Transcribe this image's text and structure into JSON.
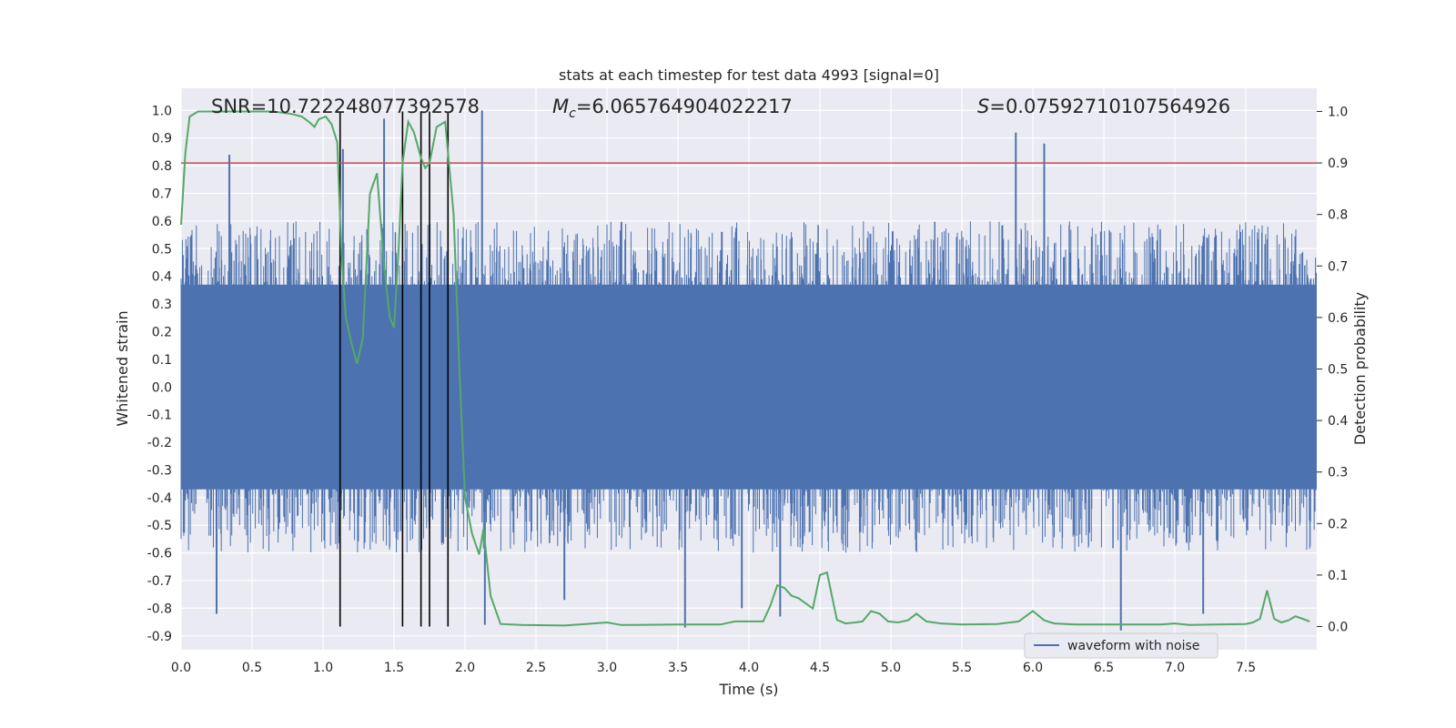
{
  "chart_data": {
    "type": "line",
    "title": "stats at each timestep for test data 4993 [signal=0]",
    "xlabel": "Time (s)",
    "ylabel_left": "Whitened strain",
    "ylabel_right": "Detection probability",
    "xlim": [
      0.0,
      8.0
    ],
    "ylim_left": [
      -0.95,
      1.08
    ],
    "ylim_right": [
      -0.045,
      1.045
    ],
    "x_ticks": [
      "0.0",
      "0.5",
      "1.0",
      "1.5",
      "2.0",
      "2.5",
      "3.0",
      "3.5",
      "4.0",
      "4.5",
      "5.0",
      "5.5",
      "6.0",
      "6.5",
      "7.0",
      "7.5"
    ],
    "y_ticks_left": [
      "1.0",
      "0.9",
      "0.8",
      "0.7",
      "0.6",
      "0.5",
      "0.4",
      "0.3",
      "0.2",
      "0.1",
      "0.0",
      "-0.1",
      "-0.2",
      "-0.3",
      "-0.4",
      "-0.5",
      "-0.6",
      "-0.7",
      "-0.8",
      "-0.9"
    ],
    "y_ticks_right": [
      "1.0",
      "0.9",
      "0.8",
      "0.7",
      "0.6",
      "0.5",
      "0.4",
      "0.3",
      "0.2",
      "0.1",
      "0.0"
    ],
    "annotations": {
      "snr": "SNR=10.722248077392578",
      "mc_symbol": "M",
      "mc_sub": "c",
      "mc_value": "=6.065764904022217",
      "s_symbol": "S",
      "s_value": "=0.07592710107564926"
    },
    "threshold": 0.9,
    "vertical_markers": [
      1.12,
      1.56,
      1.69,
      1.75,
      1.88
    ],
    "waveform": {
      "name": "waveform with noise",
      "color": "#4c72b0",
      "typical_envelope": [
        -0.48,
        0.48
      ],
      "peaks": [
        {
          "x": 0.34,
          "y": 0.84
        },
        {
          "x": 1.43,
          "y": 0.97
        },
        {
          "x": 1.14,
          "y": 0.86
        },
        {
          "x": 2.12,
          "y": 1.0
        },
        {
          "x": 5.88,
          "y": 0.92
        },
        {
          "x": 6.08,
          "y": 0.88
        },
        {
          "x": 3.55,
          "y": -0.87
        },
        {
          "x": 6.62,
          "y": -0.88
        },
        {
          "x": 2.14,
          "y": -0.86
        },
        {
          "x": 0.25,
          "y": -0.82
        },
        {
          "x": 4.22,
          "y": -0.83
        },
        {
          "x": 7.2,
          "y": -0.82
        },
        {
          "x": 2.7,
          "y": -0.77
        },
        {
          "x": 3.95,
          "y": -0.8
        }
      ]
    },
    "probability": {
      "color": "#55a868",
      "x": [
        0.0,
        0.03,
        0.06,
        0.12,
        0.2,
        0.35,
        0.5,
        0.65,
        0.78,
        0.85,
        0.9,
        0.94,
        0.97,
        1.02,
        1.06,
        1.1,
        1.13,
        1.16,
        1.2,
        1.24,
        1.28,
        1.33,
        1.38,
        1.43,
        1.47,
        1.5,
        1.53,
        1.56,
        1.6,
        1.64,
        1.69,
        1.72,
        1.75,
        1.8,
        1.86,
        1.88,
        1.92,
        1.96,
        2.0,
        2.05,
        2.1,
        2.13,
        2.18,
        2.25,
        2.4,
        2.7,
        3.0,
        3.1,
        3.2,
        3.5,
        3.8,
        3.9,
        4.0,
        4.1,
        4.15,
        4.2,
        4.25,
        4.3,
        4.35,
        4.4,
        4.45,
        4.5,
        4.55,
        4.62,
        4.68,
        4.75,
        4.8,
        4.86,
        4.92,
        4.98,
        5.05,
        5.12,
        5.18,
        5.25,
        5.35,
        5.5,
        5.75,
        5.9,
        6.0,
        6.08,
        6.15,
        6.3,
        6.6,
        6.9,
        7.0,
        7.1,
        7.3,
        7.5,
        7.55,
        7.6,
        7.65,
        7.7,
        7.75,
        7.8,
        7.85,
        7.9,
        7.95
      ],
      "y": [
        0.78,
        0.92,
        0.99,
        1.0,
        1.0,
        1.0,
        1.0,
        1.0,
        0.995,
        0.99,
        0.98,
        0.97,
        0.985,
        0.99,
        0.975,
        0.94,
        0.72,
        0.6,
        0.55,
        0.51,
        0.56,
        0.84,
        0.88,
        0.7,
        0.6,
        0.58,
        0.72,
        0.9,
        0.98,
        0.96,
        0.91,
        0.89,
        0.9,
        0.97,
        0.98,
        0.92,
        0.8,
        0.5,
        0.25,
        0.18,
        0.14,
        0.19,
        0.06,
        0.005,
        0.003,
        0.002,
        0.008,
        0.003,
        0.003,
        0.004,
        0.004,
        0.01,
        0.01,
        0.01,
        0.04,
        0.08,
        0.075,
        0.06,
        0.055,
        0.045,
        0.035,
        0.1,
        0.105,
        0.013,
        0.006,
        0.008,
        0.01,
        0.03,
        0.025,
        0.01,
        0.008,
        0.012,
        0.025,
        0.01,
        0.006,
        0.004,
        0.005,
        0.01,
        0.03,
        0.012,
        0.006,
        0.004,
        0.004,
        0.004,
        0.006,
        0.003,
        0.004,
        0.005,
        0.008,
        0.015,
        0.07,
        0.015,
        0.008,
        0.012,
        0.02,
        0.015,
        0.01
      ]
    },
    "legend": {
      "label": "waveform with noise",
      "position": "lower-right"
    },
    "colors": {
      "background": "#eaeaf2",
      "grid": "#ffffff",
      "threshold": "#c44e52",
      "markers": "#000000"
    }
  }
}
